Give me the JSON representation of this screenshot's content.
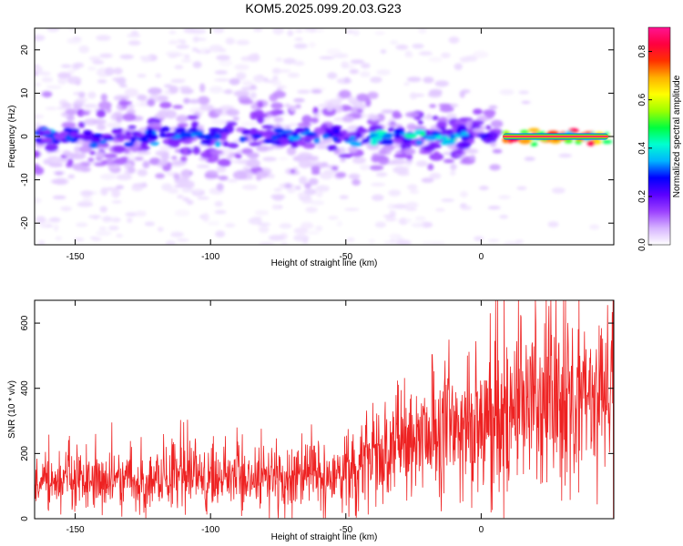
{
  "figure": {
    "title": "KOM5.2025.099.20.03.G23"
  },
  "chart_data": [
    {
      "type": "heatmap",
      "xlabel": "Height of straight line (km)",
      "ylabel": "Frequency (Hz)",
      "xlim": [
        -165,
        49
      ],
      "ylim": [
        -25,
        25
      ],
      "xticks": [
        -150,
        -100,
        -50,
        0
      ],
      "yticks": [
        -20,
        -10,
        0,
        10,
        20
      ],
      "colorbar": {
        "label": "Normalized spectral amplitude",
        "range": [
          0.0,
          0.9
        ],
        "ticks": [
          0.0,
          0.2,
          0.4,
          0.6,
          0.8
        ],
        "colormap": [
          "#ffffff",
          "#d6b3ff",
          "#9b40ff",
          "#5a00ff",
          "#0000ff",
          "#00b4ff",
          "#00ffd0",
          "#00ff40",
          "#9cff00",
          "#ffff00",
          "#ffb000",
          "#ff3000",
          "#ff0040",
          "#ff1493"
        ]
      },
      "ridge": {
        "frequency_hz": 0,
        "segments": [
          {
            "x_from": -165,
            "x_to": -40,
            "peak_amplitude": 0.35
          },
          {
            "x_from": -40,
            "x_to": -5,
            "peak_amplitude": 0.45
          },
          {
            "x_from": 8,
            "x_to": 47,
            "peak_amplitude": 0.88
          }
        ]
      }
    },
    {
      "type": "line",
      "xlabel": "Height of straight line (km)",
      "ylabel": "SNR (10 * v/v)",
      "xlim": [
        -165,
        49
      ],
      "ylim": [
        0,
        670
      ],
      "xticks": [
        -150,
        -100,
        -50,
        0
      ],
      "yticks": [
        0,
        200,
        400,
        600
      ],
      "grid": false,
      "series": [
        {
          "color": "#ee2222",
          "x": [
            -165,
            -150,
            -130,
            -110,
            -90,
            -70,
            -50,
            -40,
            -30,
            -20,
            -10,
            0,
            10,
            20,
            30,
            40,
            49
          ],
          "y": [
            120,
            115,
            120,
            118,
            122,
            125,
            140,
            180,
            220,
            260,
            290,
            300,
            330,
            345,
            360,
            380,
            390
          ]
        }
      ]
    }
  ]
}
